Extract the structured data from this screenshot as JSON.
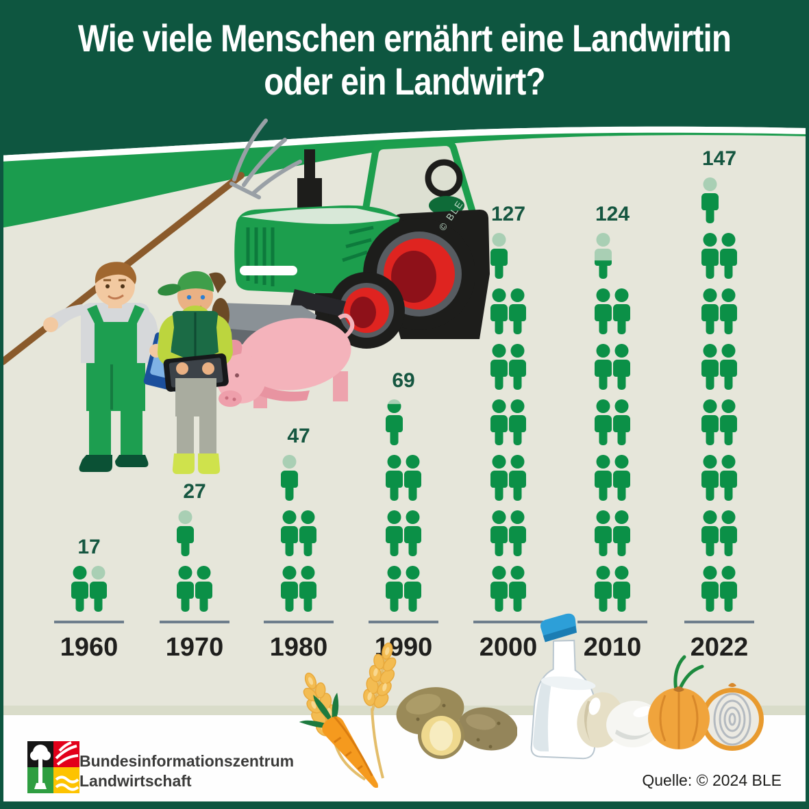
{
  "header": {
    "title_line1": "Wie viele Menschen ernährt eine Landwirtin",
    "title_line2": "oder ein Landwirt?"
  },
  "chart_data": {
    "type": "bar",
    "style": "isotype-pictogram, 1 person icon = 10 people, partial icon = remainder",
    "unit_per_icon": 10,
    "categories": [
      "1960",
      "1970",
      "1980",
      "1990",
      "2000",
      "2010",
      "2022"
    ],
    "values": [
      17,
      27,
      47,
      69,
      127,
      124,
      147
    ],
    "title": "Wie viele Menschen ernährt eine Landwirtin oder ein Landwirt?",
    "xlabel": "",
    "ylabel": "",
    "legend_position": "none",
    "grid": false
  },
  "scene": {
    "watermark": "© BLE"
  },
  "footer": {
    "org_line1": "Bundesinformationszentrum",
    "org_line2": "Landwirtschaft",
    "source": "Quelle: © 2024 BLE"
  },
  "colors": {
    "header_green": "#0e5640",
    "band_green": "#1b9c4e",
    "background": "#e6e6da",
    "person_green": "#0b9047",
    "person_light": "#a9cfb4",
    "value_green": "#155640",
    "baseline_gray": "#6e7e8c",
    "year_color": "#1f1f1d"
  }
}
